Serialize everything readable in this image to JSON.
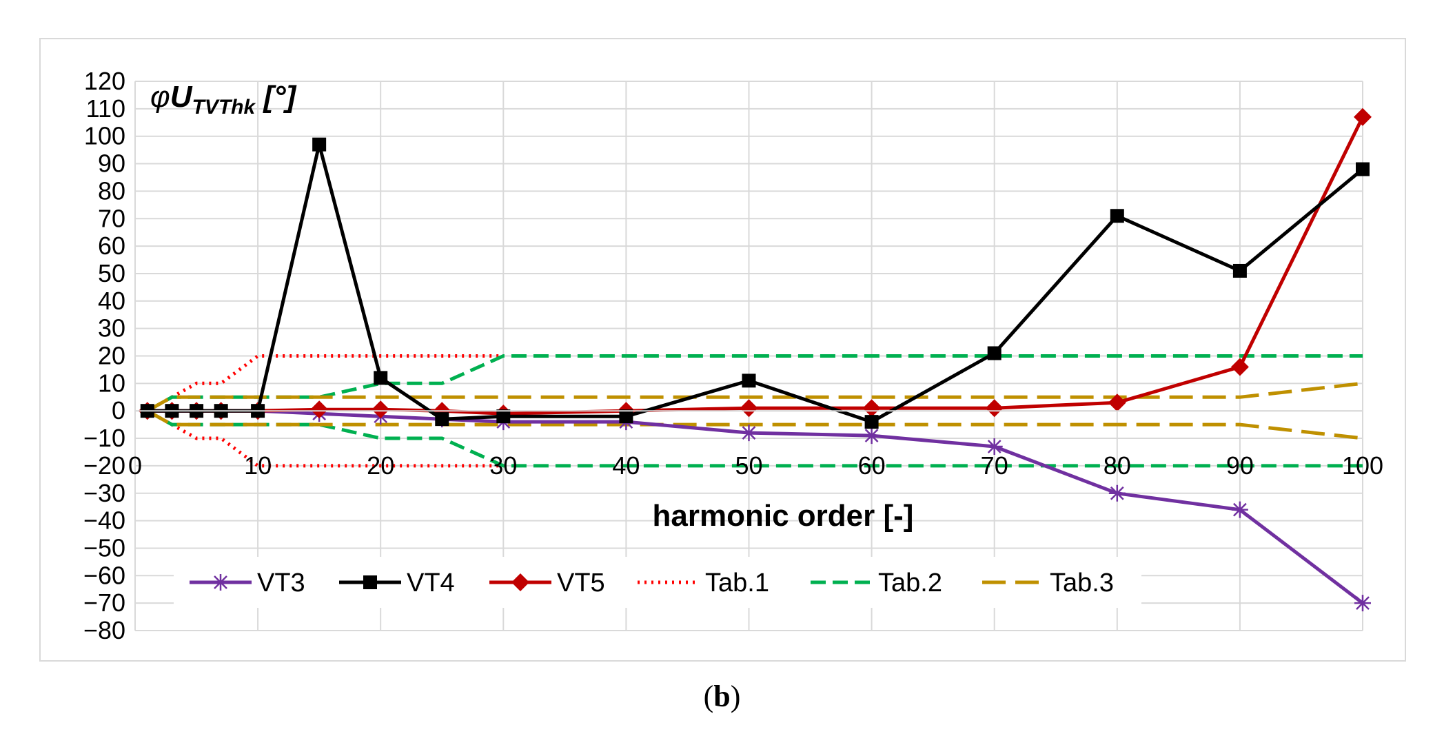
{
  "caption": {
    "open": "(",
    "letter": "b",
    "close": ")"
  },
  "chart_data": {
    "type": "line",
    "ylabel": {
      "phi": "φ",
      "main": "U",
      "sub": "TVThk",
      "unit": " [°]"
    },
    "xlabel": "harmonic order [-]",
    "xlim": [
      0,
      100
    ],
    "ylim": [
      -80,
      120
    ],
    "xticks": [
      0,
      10,
      20,
      30,
      40,
      50,
      60,
      70,
      80,
      90,
      100
    ],
    "yticks": [
      120,
      110,
      100,
      90,
      80,
      70,
      60,
      50,
      40,
      30,
      20,
      10,
      0,
      -10,
      -20,
      -30,
      -40,
      -50,
      -60,
      -70,
      -80
    ],
    "grid": true,
    "legend_position": "bottom",
    "series": [
      {
        "name": "VT3",
        "color": "#7030a0",
        "style": "solid",
        "marker": "star",
        "x": [
          1,
          3,
          5,
          7,
          10,
          15,
          20,
          25,
          30,
          40,
          50,
          60,
          70,
          80,
          90,
          100
        ],
        "y": [
          0,
          0,
          0,
          0,
          0,
          -1,
          -2,
          -3,
          -4,
          -4,
          -8,
          -9,
          -13,
          -30,
          -36,
          -70
        ]
      },
      {
        "name": "VT4",
        "color": "#000000",
        "style": "solid",
        "marker": "square",
        "x": [
          1,
          3,
          5,
          7,
          10,
          15,
          20,
          25,
          30,
          40,
          50,
          60,
          70,
          80,
          90,
          100
        ],
        "y": [
          0,
          0,
          0,
          0,
          0,
          97,
          12,
          -3,
          -2,
          -2,
          11,
          -4,
          21,
          71,
          51,
          88
        ]
      },
      {
        "name": "VT5",
        "color": "#c00000",
        "style": "solid",
        "marker": "diamond",
        "x": [
          1,
          3,
          5,
          7,
          10,
          15,
          20,
          25,
          30,
          40,
          50,
          60,
          70,
          80,
          90,
          100
        ],
        "y": [
          0,
          0,
          0,
          0,
          0,
          0.5,
          0.5,
          0,
          -1,
          0,
          1,
          1,
          1,
          3,
          16,
          107
        ]
      },
      {
        "name": "Tab.1",
        "color": "#ff0000",
        "style": "dotted",
        "marker": "none",
        "upper": {
          "x": [
            1,
            5,
            7,
            10,
            30
          ],
          "y": [
            0,
            10,
            10,
            20,
            20
          ]
        },
        "lower": {
          "x": [
            1,
            5,
            7,
            10,
            30
          ],
          "y": [
            0,
            -10,
            -10,
            -20,
            -20
          ]
        }
      },
      {
        "name": "Tab.2",
        "color": "#00b050",
        "style": "dashed",
        "marker": "none",
        "upper": {
          "x": [
            1,
            3,
            15,
            20,
            25,
            30,
            100
          ],
          "y": [
            0,
            5,
            5,
            10,
            10,
            20,
            20
          ]
        },
        "lower": {
          "x": [
            1,
            3,
            15,
            20,
            25,
            30,
            100
          ],
          "y": [
            0,
            -5,
            -5,
            -10,
            -10,
            -20,
            -20
          ]
        }
      },
      {
        "name": "Tab.3",
        "color": "#bf9000",
        "style": "longdash",
        "marker": "none",
        "upper": {
          "x": [
            1,
            3,
            90,
            100
          ],
          "y": [
            0,
            5,
            5,
            10
          ]
        },
        "lower": {
          "x": [
            1,
            3,
            90,
            100
          ],
          "y": [
            0,
            -5,
            -5,
            -10
          ]
        }
      }
    ]
  }
}
